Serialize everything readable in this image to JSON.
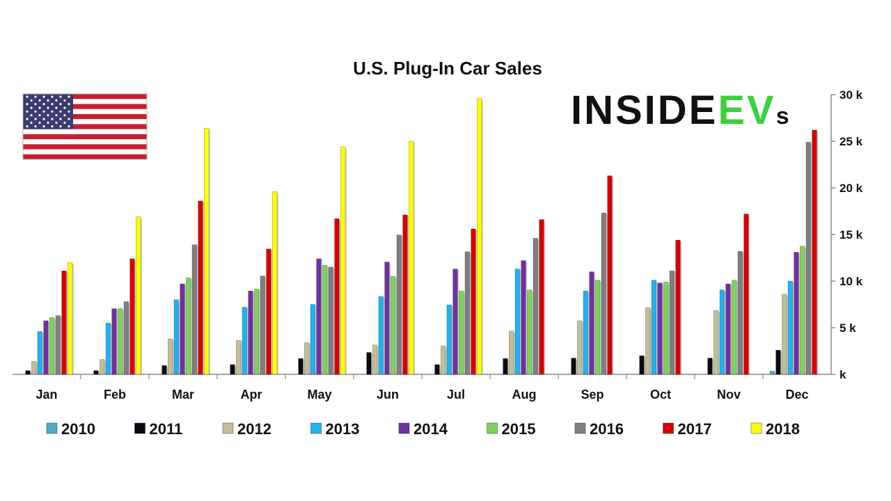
{
  "logo": {
    "text_main": "INSIDE",
    "text_accent": "EV",
    "text_tail": "s",
    "accent_color": "#3bd13b",
    "main_color": "#111111"
  },
  "flag": {
    "icon": "us-flag-icon",
    "stripe_red": "#c8202f",
    "canton": "#3c3b6e"
  },
  "chart_data": {
    "type": "bar",
    "title": "U.S. Plug-In Car Sales",
    "xlabel": "",
    "ylabel": "",
    "ylim": [
      0,
      30000
    ],
    "yticks": [
      0,
      5000,
      10000,
      15000,
      20000,
      25000,
      30000
    ],
    "ytick_labels": [
      "k",
      "5 k",
      "10 k",
      "15 k",
      "20 k",
      "25 k",
      "30 k"
    ],
    "y_axis_side": "right",
    "grid": false,
    "legend_position": "bottom",
    "categories": [
      "Jan",
      "Feb",
      "Mar",
      "Apr",
      "May",
      "Jun",
      "Jul",
      "Aug",
      "Sep",
      "Oct",
      "Nov",
      "Dec"
    ],
    "series": [
      {
        "name": "2010",
        "color": "#4bacc6",
        "values": [
          0,
          0,
          0,
          0,
          0,
          0,
          0,
          0,
          0,
          0,
          0,
          350
        ]
      },
      {
        "name": "2011",
        "color": "#0a0a14",
        "values": [
          400,
          400,
          950,
          1050,
          1700,
          2350,
          1050,
          1700,
          1750,
          2000,
          1750,
          2600
        ]
      },
      {
        "name": "2012",
        "color": "#c4bd97",
        "values": [
          1400,
          1600,
          3800,
          3650,
          3400,
          3150,
          3050,
          4650,
          5750,
          7150,
          6850,
          8600
        ]
      },
      {
        "name": "2013",
        "color": "#1fb3f0",
        "values": [
          4600,
          5500,
          8000,
          7200,
          7500,
          8350,
          7450,
          11300,
          8950,
          10100,
          9050,
          10000
        ]
      },
      {
        "name": "2014",
        "color": "#7030a0",
        "values": [
          5750,
          7050,
          9700,
          8950,
          12400,
          12050,
          11300,
          12200,
          11000,
          9800,
          9700,
          13100
        ]
      },
      {
        "name": "2015",
        "color": "#7dd35a",
        "values": [
          6100,
          7050,
          10350,
          9150,
          11700,
          10500,
          8950,
          9050,
          10100,
          9900,
          10100,
          13750
        ]
      },
      {
        "name": "2016",
        "color": "#7f7f7f",
        "values": [
          6300,
          7800,
          13900,
          10550,
          11500,
          14950,
          13150,
          14600,
          17300,
          11100,
          13200,
          24900
        ]
      },
      {
        "name": "2017",
        "color": "#d80000",
        "values": [
          11100,
          12400,
          18600,
          13450,
          16700,
          17100,
          15600,
          16600,
          21300,
          14400,
          17200,
          26200
        ]
      },
      {
        "name": "2018",
        "color": "#ffff00",
        "values": [
          12000,
          16900,
          26400,
          19600,
          24400,
          25000,
          29600,
          null,
          null,
          null,
          null,
          null
        ]
      }
    ]
  }
}
